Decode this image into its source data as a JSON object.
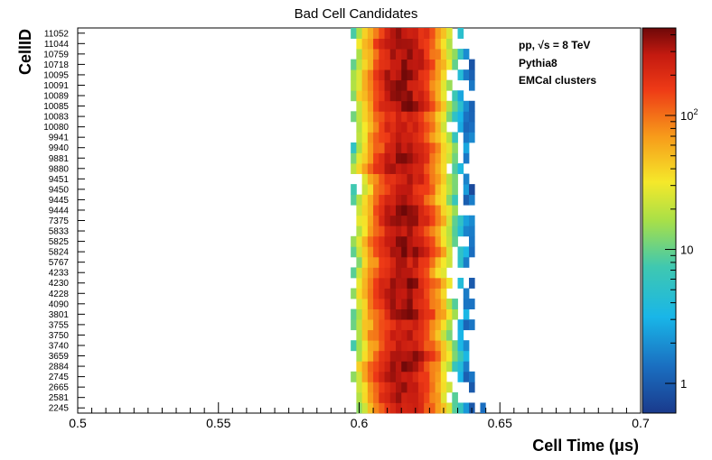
{
  "chart_data": {
    "type": "heatmap",
    "title": "Bad Cell Candidates",
    "xlabel": "Cell Time (μs)",
    "ylabel": "CellID",
    "xlim": [
      0.5,
      0.7
    ],
    "x_ticks": [
      "0.5",
      "0.55",
      "0.6",
      "0.65",
      "0.7"
    ],
    "x_bin_width": 0.002,
    "y_categories": [
      "2245",
      "2581",
      "2665",
      "2745",
      "2884",
      "3659",
      "3740",
      "3750",
      "3755",
      "3801",
      "4090",
      "4228",
      "4230",
      "4233",
      "5767",
      "5824",
      "5825",
      "5833",
      "7375",
      "9444",
      "9445",
      "9450",
      "9451",
      "9880",
      "9881",
      "9940",
      "9941",
      "10080",
      "10083",
      "10085",
      "10089",
      "10091",
      "10095",
      "10718",
      "10759",
      "11044",
      "11052"
    ],
    "profile": {
      "center": 0.616,
      "sigma": 0.0068,
      "peak_counts": 400,
      "range": [
        0.597,
        0.641
      ],
      "stray_point_time": 0.643,
      "stray_point_cell": "2245"
    },
    "z_scale": "log",
    "z_ticks": [
      {
        "label": "1",
        "value": 1
      },
      {
        "label": "10",
        "value": 10
      },
      {
        "label": "10",
        "sup": "2",
        "value": 100
      }
    ],
    "zlim": [
      0.6,
      450
    ],
    "annotations": [
      "pp, √s = 8 TeV",
      "Pythia8",
      "EMCal clusters"
    ],
    "legend": "none",
    "grid": false
  }
}
